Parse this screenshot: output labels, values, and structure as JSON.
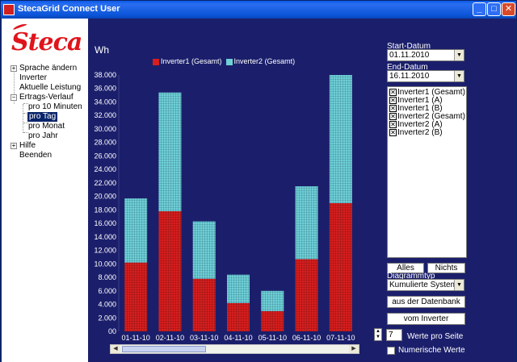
{
  "window": {
    "title": "StecaGrid Connect User",
    "controls": {
      "minimize": "_",
      "maximize": "□",
      "close": "✕"
    }
  },
  "logo": {
    "text": "Steca"
  },
  "tree": {
    "items": [
      {
        "label": "Sprache ändern",
        "toggle": "+"
      },
      {
        "label": "Inverter"
      },
      {
        "label": "Aktuelle Leistung"
      },
      {
        "label": "Ertrags-Verlauf",
        "toggle": "−"
      },
      {
        "label": "pro 10 Minuten"
      },
      {
        "label": "pro Tag",
        "selected": true
      },
      {
        "label": "pro Monat"
      },
      {
        "label": "pro Jahr"
      },
      {
        "label": "Hilfe",
        "toggle": "+"
      },
      {
        "label": "Beenden"
      }
    ]
  },
  "controls": {
    "start_label": "Start-Datum",
    "start_value": "01.11.2010",
    "end_label": "End-Datum",
    "end_value": "16.11.2010",
    "series_options": [
      {
        "label": "Inverter1 (Gesamt)",
        "checked": true
      },
      {
        "label": "Inverter1 (A)",
        "checked": true
      },
      {
        "label": "Inverter1 (B)",
        "checked": true
      },
      {
        "label": "Inverter2 (Gesamt)",
        "checked": true
      },
      {
        "label": "Inverter2 (A)",
        "checked": true
      },
      {
        "label": "Inverter2 (B)",
        "checked": true
      }
    ],
    "all_button": "Alles",
    "none_button": "Nichts",
    "diagram_type_label": "Diagrammtyp",
    "diagram_type_value": "Kumulierte Systemv",
    "from_db_button": "aus der Datenbank",
    "from_inverter_button": "vom Inverter",
    "values_per_page": "7",
    "values_per_page_label": "Werte pro Seite",
    "numeric_values_label": "Numerische Werte",
    "numeric_values_checked": false
  },
  "colors": {
    "chart_bg": "#1b1f6b",
    "inverter1": "#d81e1e",
    "inverter2": "#6fd0d8",
    "brand": "#e0141b"
  },
  "chart_data": {
    "type": "bar",
    "stacked": true,
    "ylabel": "Wh",
    "ylim": [
      0,
      38000
    ],
    "yticks": [
      "00",
      "2.000",
      "4.000",
      "6.000",
      "8.000",
      "10.000",
      "12.000",
      "14.000",
      "16.000",
      "18.000",
      "20.000",
      "22.000",
      "24.000",
      "26.000",
      "28.000",
      "30.000",
      "32.000",
      "34.000",
      "36.000",
      "38.000"
    ],
    "categories": [
      "01-11-10",
      "02-11-10",
      "03-11-10",
      "04-11-10",
      "05-11-10",
      "06-11-10",
      "07-11-10"
    ],
    "series": [
      {
        "name": "Inverter1 (Gesamt)",
        "values": [
          10200,
          17800,
          7800,
          4200,
          3000,
          10700,
          19000
        ]
      },
      {
        "name": "Inverter2 (Gesamt)",
        "values": [
          9500,
          17600,
          8500,
          4200,
          3000,
          10800,
          19000
        ]
      }
    ],
    "legend": "top"
  }
}
